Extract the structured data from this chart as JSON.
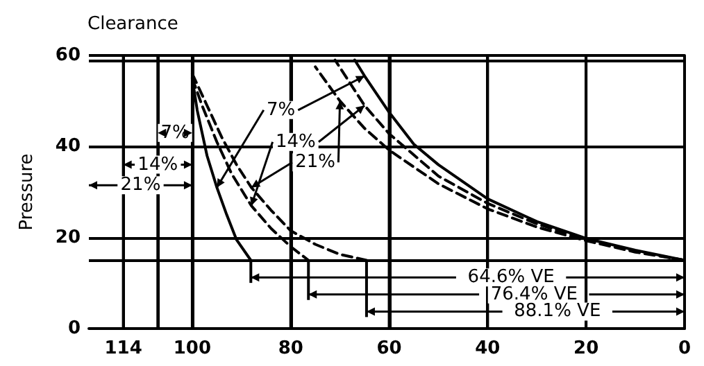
{
  "chart_data": {
    "type": "line",
    "title": "Clearance",
    "ylabel": "Pressure",
    "xlim": [
      121,
      0
    ],
    "ylim": [
      0,
      60
    ],
    "xticks": [
      114,
      {
        "value": 107,
        "label": null
      },
      100,
      80,
      60,
      40,
      20,
      0
    ],
    "yticks": [
      0,
      20,
      40,
      60
    ],
    "grid": true,
    "marker": "none",
    "ref_lines": [
      {
        "axis": "y",
        "value": 15,
        "label": null
      },
      {
        "axis": "y",
        "value": 59,
        "label": null
      }
    ],
    "series": [
      {
        "color": "#000000",
        "line_style": "solid",
        "x": [
          100,
          99,
          98,
          97,
          95,
          93,
          91,
          88.1
        ],
        "values": [
          55,
          48,
          43,
          38,
          31,
          25,
          19.5,
          15
        ]
      },
      {
        "color": "#000000",
        "line_style": "dashed",
        "x": [
          100,
          98,
          95,
          92,
          88,
          84,
          80,
          76.4
        ],
        "values": [
          55,
          49,
          41,
          34,
          27,
          22,
          18,
          15
        ]
      },
      {
        "color": "#000000",
        "line_style": "dashed",
        "x": [
          100,
          97,
          94,
          91,
          88,
          84,
          80,
          75,
          70,
          64.6
        ],
        "values": [
          56,
          49,
          42,
          36,
          31,
          26,
          21.5,
          18.5,
          16.3,
          15
        ]
      },
      {
        "color": "#000000",
        "line_style": "solid",
        "x": [
          0,
          10,
          20,
          30,
          40,
          50,
          55,
          60,
          65,
          67
        ],
        "values": [
          15,
          17.2,
          19.8,
          23.5,
          28.5,
          36,
          40.5,
          47.5,
          55.5,
          59
        ]
      },
      {
        "color": "#000000",
        "line_style": "dashed",
        "x": [
          0,
          10,
          20,
          30,
          40,
          50,
          60,
          65,
          71
        ],
        "values": [
          15,
          17,
          19.6,
          23,
          27.5,
          33.5,
          42.8,
          49,
          59
        ]
      },
      {
        "color": "#000000",
        "line_style": "dashed",
        "x": [
          0,
          10,
          20,
          30,
          40,
          50,
          60,
          65,
          70,
          75
        ],
        "values": [
          15,
          16.8,
          19.3,
          22.3,
          26.3,
          31.8,
          39.2,
          44,
          50,
          57.5
        ]
      }
    ],
    "annotations": [
      {
        "text": "7%",
        "x": 82,
        "y": 48
      },
      {
        "text": "14%",
        "x": 79,
        "y": 41
      },
      {
        "text": "21%",
        "x": 75,
        "y": 36.5
      },
      {
        "text": "7%",
        "x": 103.5,
        "y": 43
      },
      {
        "text": "14%",
        "x": 107,
        "y": 36
      },
      {
        "text": "21%",
        "x": 110.5,
        "y": 31.5
      },
      "64.6% VE",
      "76.4% VE",
      "88.1% VE"
    ]
  }
}
